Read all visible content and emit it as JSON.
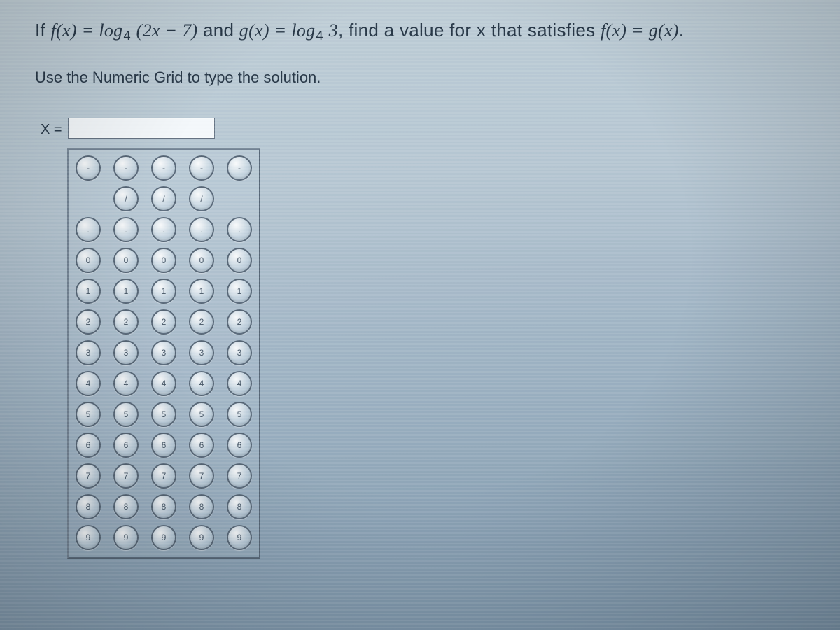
{
  "question": {
    "prefix": "If ",
    "f_lhs": "f(x) = ",
    "f_rhs_a": "log",
    "f_sub": "4",
    "f_arg": " (2x − 7)",
    "mid": " and ",
    "g_lhs": "g(x) = ",
    "g_rhs_a": "log",
    "g_sub": "4",
    "g_arg": " 3",
    "comma": ", ",
    "tail": "find a value for x that satisfies ",
    "eqL": "f(x) = g(x)",
    "period": "."
  },
  "instruction": "Use the Numeric Grid to type the solution.",
  "answer": {
    "label": "X =",
    "value": ""
  },
  "grid": {
    "columns": 5,
    "rows": [
      {
        "cells": [
          "-",
          "-",
          "-",
          "-",
          "-"
        ],
        "blank": []
      },
      {
        "cells": [
          "",
          "/",
          "/",
          "/",
          ""
        ],
        "blank": [
          0,
          4
        ]
      },
      {
        "cells": [
          ".",
          ".",
          ".",
          ".",
          "."
        ],
        "blank": []
      },
      {
        "cells": [
          "0",
          "0",
          "0",
          "0",
          "0"
        ],
        "blank": []
      },
      {
        "cells": [
          "1",
          "1",
          "1",
          "1",
          "1"
        ],
        "blank": []
      },
      {
        "cells": [
          "2",
          "2",
          "2",
          "2",
          "2"
        ],
        "blank": []
      },
      {
        "cells": [
          "3",
          "3",
          "3",
          "3",
          "3"
        ],
        "blank": []
      },
      {
        "cells": [
          "4",
          "4",
          "4",
          "4",
          "4"
        ],
        "blank": []
      },
      {
        "cells": [
          "5",
          "5",
          "5",
          "5",
          "5"
        ],
        "blank": []
      },
      {
        "cells": [
          "6",
          "6",
          "6",
          "6",
          "6"
        ],
        "blank": []
      },
      {
        "cells": [
          "7",
          "7",
          "7",
          "7",
          "7"
        ],
        "blank": []
      },
      {
        "cells": [
          "8",
          "8",
          "8",
          "8",
          "8"
        ],
        "blank": []
      },
      {
        "cells": [
          "9",
          "9",
          "9",
          "9",
          "9"
        ],
        "blank": []
      }
    ]
  },
  "style": {
    "text_color": "#2a3a4a",
    "bubble_border": "#5a6a7a",
    "grid_border": "#5a6a7a",
    "input_bg": "#f4f8fb",
    "question_fontsize": 26,
    "instruction_fontsize": 22,
    "bubble_size": 32
  }
}
